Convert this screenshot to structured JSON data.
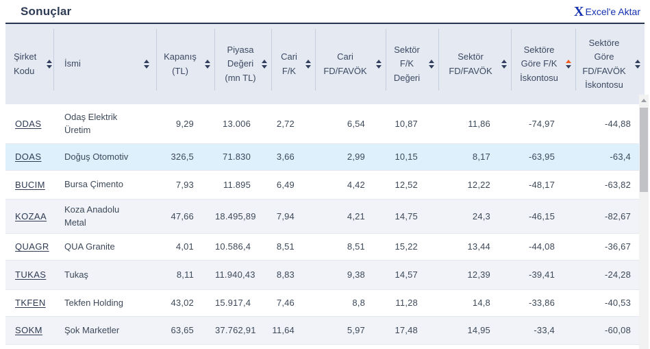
{
  "page": {
    "title": "Sonuçlar",
    "export": {
      "icon": "X",
      "label": "Excel'e Aktar"
    }
  },
  "table": {
    "columns": [
      {
        "key": "sirket-kodu",
        "label": "Şirket Kodu",
        "sort": "none"
      },
      {
        "key": "ismi",
        "label": "İsmi",
        "sort": "none"
      },
      {
        "key": "kapanis-tl",
        "label": "Kapanış (TL)",
        "sort": "none"
      },
      {
        "key": "piyasa-degeri-mn-tl",
        "label": "Piyasa Değeri (mn TL)",
        "sort": "none"
      },
      {
        "key": "cari-fk",
        "label": "Cari F/K",
        "sort": "none"
      },
      {
        "key": "cari-fd-favok",
        "label": "Cari FD/FAVÖK",
        "sort": "none"
      },
      {
        "key": "sektor-fk-degeri",
        "label": "Sektör F/K Değeri",
        "sort": "none"
      },
      {
        "key": "sektor-fd-favok",
        "label": "Sektör FD/FAVÖK",
        "sort": "none"
      },
      {
        "key": "sektore-gore-fk-iskontosu",
        "label": "Sektöre Göre F/K İskontosu",
        "sort": "asc"
      },
      {
        "key": "sektore-gore-fd-favok-iskontosu",
        "label": "Sektöre Göre FD/FAVÖK İskontosu",
        "sort": "none"
      }
    ],
    "rows": [
      {
        "code": "ODAS",
        "name": "Odaş Elektrik Üretim",
        "highlight": false,
        "values": [
          "9,29",
          "13.006",
          "2,72",
          "6,54",
          "10,87",
          "11,86",
          "-74,97",
          "-44,88"
        ]
      },
      {
        "code": "DOAS",
        "name": "Doğuş Otomotiv",
        "highlight": true,
        "values": [
          "326,5",
          "71.830",
          "3,66",
          "2,99",
          "10,15",
          "8,17",
          "-63,95",
          "-63,4"
        ]
      },
      {
        "code": "BUCIM",
        "name": "Bursa Çimento",
        "highlight": false,
        "values": [
          "7,93",
          "11.895",
          "6,49",
          "4,42",
          "12,52",
          "12,22",
          "-48,17",
          "-63,82"
        ]
      },
      {
        "code": "KOZAA",
        "name": "Koza Anadolu Metal",
        "highlight": false,
        "values": [
          "47,66",
          "18.495,89",
          "7,94",
          "4,21",
          "14,75",
          "24,3",
          "-46,15",
          "-82,67"
        ]
      },
      {
        "code": "QUAGR",
        "name": "QUA Granite",
        "highlight": false,
        "values": [
          "4,01",
          "10.586,4",
          "8,51",
          "8,51",
          "15,22",
          "13,44",
          "-44,08",
          "-36,67"
        ]
      },
      {
        "code": "TUKAS",
        "name": "Tukaş",
        "highlight": false,
        "values": [
          "8,11",
          "11.940,43",
          "8,83",
          "9,38",
          "14,57",
          "12,39",
          "-39,41",
          "-24,28"
        ]
      },
      {
        "code": "TKFEN",
        "name": "Tekfen Holding",
        "highlight": false,
        "values": [
          "43,02",
          "15.917,4",
          "7,46",
          "8,8",
          "11,28",
          "14,8",
          "-33,86",
          "-40,53"
        ]
      },
      {
        "code": "SOKM",
        "name": "Şok Marketler",
        "highlight": false,
        "values": [
          "63,65",
          "37.762,91",
          "11,64",
          "5,97",
          "17,48",
          "14,95",
          "-33,4",
          "-60,08"
        ]
      }
    ]
  },
  "colors": {
    "accent_sort_asc": "#f25c1f",
    "link_blue": "#1230b0",
    "header_bg": "#e4e9f2",
    "highlight_row_bg": "#def0fb",
    "shaded_row_bg": "#f1f3f8",
    "title_text": "#2d3b55",
    "table_top_border": "#27344f"
  }
}
